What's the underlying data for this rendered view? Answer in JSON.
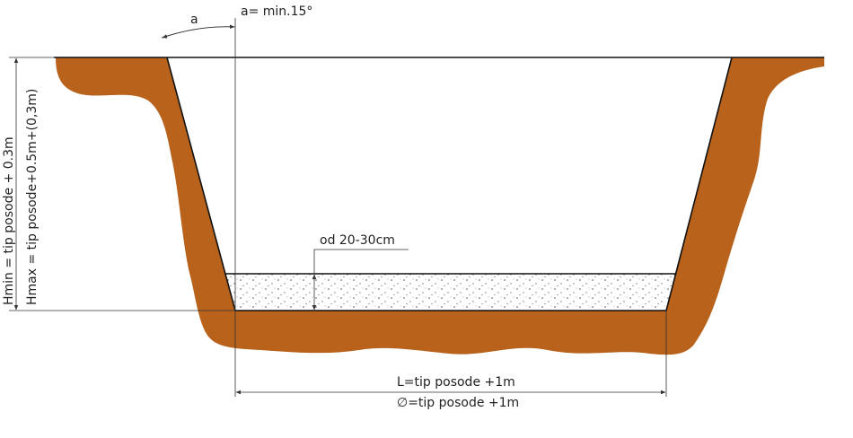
{
  "labels": {
    "angle": "a",
    "angle_note": "a= min.15°",
    "hmin": "Hmin = tip posode + 0.3m",
    "hmax": "Hmax = tip posode+0.5m+(0,3m)",
    "gravel": "od 20-30cm",
    "length": "L=tip posode +1m",
    "diameter": "∅=tip posode +1m"
  }
}
